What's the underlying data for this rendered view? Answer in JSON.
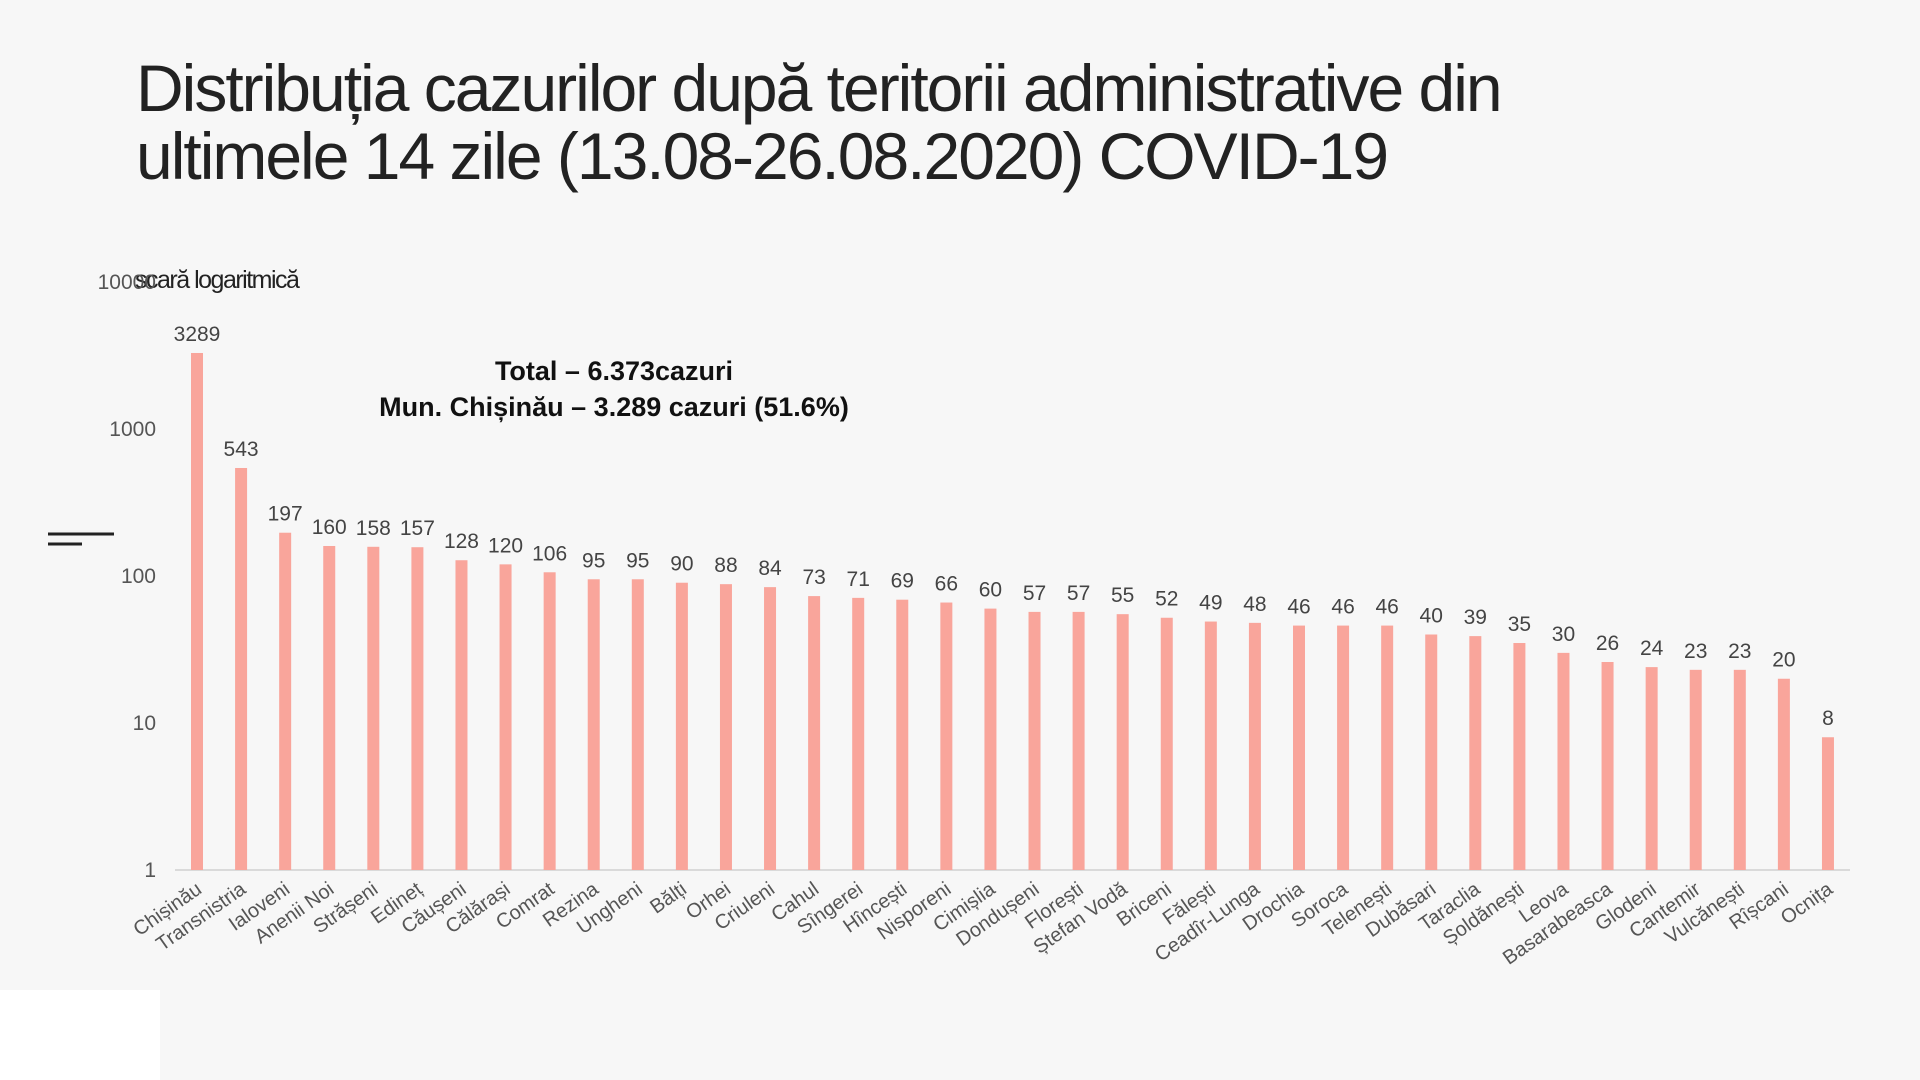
{
  "chart_data": {
    "type": "bar",
    "title": "Distribuția cazurilor după teritorii administrative din ultimele 14 zile (13.08-26.08.2020) COVID-19",
    "scale_note": "scară logaritmică",
    "yscale": "log",
    "ylim": [
      1,
      10000
    ],
    "yticks": [
      "1",
      "10",
      "100",
      "1000",
      "10000"
    ],
    "grid": false,
    "bar_color": "#f9a59b",
    "annotations": [
      "Total – 6.373cazuri",
      "Mun. Chișinău – 3.289 cazuri (51.6%)"
    ],
    "categories": [
      "Chișinău",
      "Transnistria",
      "Ialoveni",
      "Anenii Noi",
      "Strășeni",
      "Edineț",
      "Căușeni",
      "Călărași",
      "Comrat",
      "Rezina",
      "Ungheni",
      "Bălți",
      "Orhei",
      "Criuleni",
      "Cahul",
      "Sîngerei",
      "Hîncești",
      "Nisporeni",
      "Cimișlia",
      "Dondușeni",
      "Florești",
      "Ștefan Vodă",
      "Briceni",
      "Fălești",
      "Ceadîr-Lunga",
      "Drochia",
      "Soroca",
      "Telenești",
      "Dubăsari",
      "Taraclia",
      "Șoldănești",
      "Leova",
      "Basarabeasca",
      "Glodeni",
      "Cantemir",
      "Vulcănești",
      "Rîșcani",
      "Ocnița"
    ],
    "values": [
      3289,
      543,
      197,
      160,
      158,
      157,
      128,
      120,
      106,
      95,
      95,
      90,
      88,
      84,
      73,
      71,
      69,
      66,
      60,
      57,
      57,
      55,
      52,
      49,
      48,
      46,
      46,
      46,
      40,
      39,
      35,
      30,
      26,
      24,
      23,
      23,
      20,
      8
    ]
  }
}
